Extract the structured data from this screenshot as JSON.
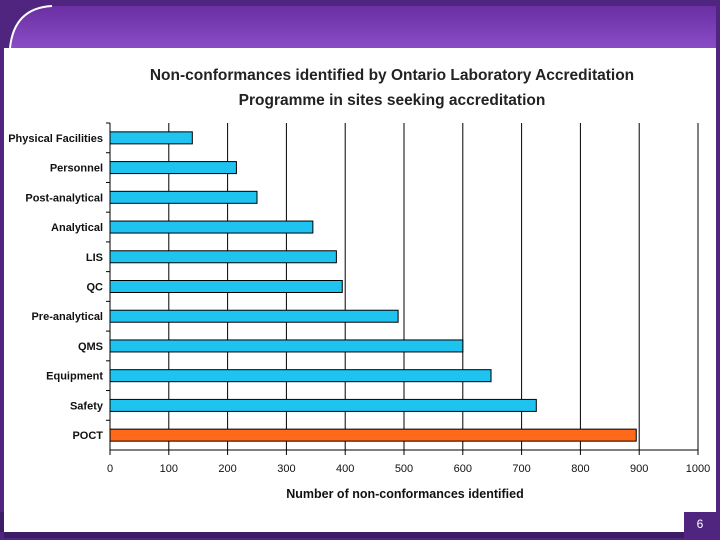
{
  "slide": {
    "number": "6"
  },
  "colors": {
    "background": "#5b2d8e",
    "bar": "#1ec3f0",
    "highlight_bar": "#ff6a1a",
    "grid": "#000000"
  },
  "chart_data": {
    "type": "bar",
    "orientation": "horizontal",
    "title_lines": [
      "Non-conformances identified by Ontario Laboratory Accreditation",
      "Programme in sites seeking accreditation"
    ],
    "xlabel": "Number of non-conformances identified",
    "ylabel": "",
    "categories": [
      "Physical Facilities",
      "Personnel",
      "Post-analytical",
      "Analytical",
      "LIS",
      "QC",
      "Pre-analytical",
      "QMS",
      "Equipment",
      "Safety",
      "POCT"
    ],
    "values": [
      140,
      215,
      250,
      345,
      385,
      395,
      490,
      600,
      648,
      725,
      895
    ],
    "highlight": "POCT",
    "xlim": [
      0,
      1000
    ],
    "xticks": [
      0,
      100,
      200,
      300,
      400,
      500,
      600,
      700,
      800,
      900,
      1000
    ],
    "grid": true,
    "legend": "none"
  }
}
